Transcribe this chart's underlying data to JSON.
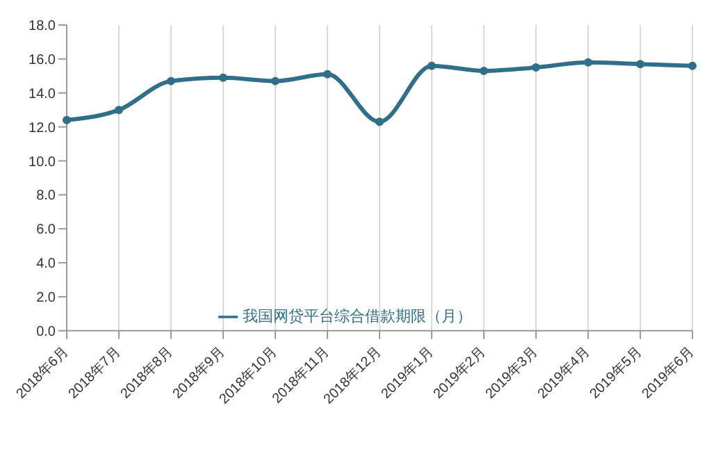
{
  "chart_data": {
    "type": "line",
    "categories": [
      "2018年6月",
      "2018年7月",
      "2018年8月",
      "2018年9月",
      "2018年10月",
      "2018年11月",
      "2018年12月",
      "2019年1月",
      "2019年2月",
      "2019年3月",
      "2019年4月",
      "2019年5月",
      "2019年6月"
    ],
    "series": [
      {
        "name": "我国网贷平台综合借款期限（月）",
        "color": "#2f6f8a",
        "values": [
          12.4,
          13.0,
          14.7,
          14.9,
          14.7,
          15.1,
          12.3,
          15.6,
          15.3,
          15.5,
          15.8,
          15.7,
          15.6
        ]
      }
    ],
    "ylim": [
      0,
      18
    ],
    "yticks": [
      {
        "value": 0,
        "label": "0.0"
      },
      {
        "value": 2,
        "label": "2.0"
      },
      {
        "value": 4,
        "label": "4.0"
      },
      {
        "value": 6,
        "label": "6.0"
      },
      {
        "value": 8,
        "label": "8.0"
      },
      {
        "value": 10,
        "label": "10.0"
      },
      {
        "value": 12,
        "label": "12.0"
      },
      {
        "value": 14,
        "label": "14.0"
      },
      {
        "value": 16,
        "label": "16.0"
      },
      {
        "value": 18,
        "label": "18.0"
      }
    ],
    "grid": "x",
    "legend": "bottom",
    "marker": "circle",
    "line_style": "solid"
  }
}
